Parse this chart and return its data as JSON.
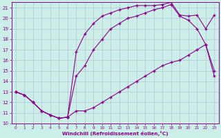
{
  "xlabel": "Windchill (Refroidissement éolien,°C)",
  "bg_color": "#cceee8",
  "line_color": "#880088",
  "grid_color": "#aaaacc",
  "xlim": [
    -0.5,
    23.5
  ],
  "ylim": [
    10,
    21.5
  ],
  "xticks": [
    0,
    1,
    2,
    3,
    4,
    5,
    6,
    7,
    8,
    9,
    10,
    11,
    12,
    13,
    14,
    15,
    16,
    17,
    18,
    19,
    20,
    21,
    22,
    23
  ],
  "yticks": [
    10,
    11,
    12,
    13,
    14,
    15,
    16,
    17,
    18,
    19,
    20,
    21
  ],
  "line1_x": [
    0,
    1,
    2,
    3,
    4,
    5,
    6,
    7,
    8,
    9,
    10,
    11,
    12,
    13,
    14,
    15,
    16,
    17,
    18,
    19,
    20,
    21,
    22,
    23
  ],
  "line1_y": [
    13.0,
    12.7,
    12.0,
    11.2,
    10.8,
    10.5,
    10.6,
    11.2,
    11.2,
    11.5,
    12.0,
    12.5,
    13.0,
    13.5,
    14.0,
    14.5,
    15.0,
    15.5,
    15.8,
    16.0,
    16.5,
    17.0,
    17.5,
    14.5
  ],
  "line2_x": [
    0,
    1,
    2,
    3,
    4,
    5,
    6,
    7,
    8,
    9,
    10,
    11,
    12,
    13,
    14,
    15,
    16,
    17,
    18,
    19,
    20,
    21,
    22,
    23
  ],
  "line2_y": [
    13.0,
    12.7,
    12.0,
    11.2,
    10.8,
    10.5,
    10.6,
    14.5,
    15.5,
    17.0,
    18.0,
    19.0,
    19.5,
    20.0,
    20.2,
    20.5,
    20.8,
    21.0,
    21.3,
    20.2,
    19.8,
    19.0,
    17.5,
    15.0
  ],
  "line3_x": [
    0,
    1,
    2,
    3,
    4,
    5,
    6,
    7,
    8,
    9,
    10,
    11,
    12,
    13,
    14,
    15,
    16,
    17,
    18,
    19,
    20,
    21,
    22,
    23
  ],
  "line3_y": [
    13.0,
    12.7,
    12.0,
    11.2,
    10.8,
    10.5,
    10.6,
    16.8,
    18.5,
    19.5,
    20.2,
    20.5,
    20.8,
    21.0,
    21.2,
    21.2,
    21.2,
    21.3,
    21.5,
    20.3,
    20.2,
    20.3,
    19.0,
    20.3
  ],
  "marker": "+",
  "markersize": 3.5,
  "markeredgewidth": 1.0,
  "linewidth": 0.8
}
